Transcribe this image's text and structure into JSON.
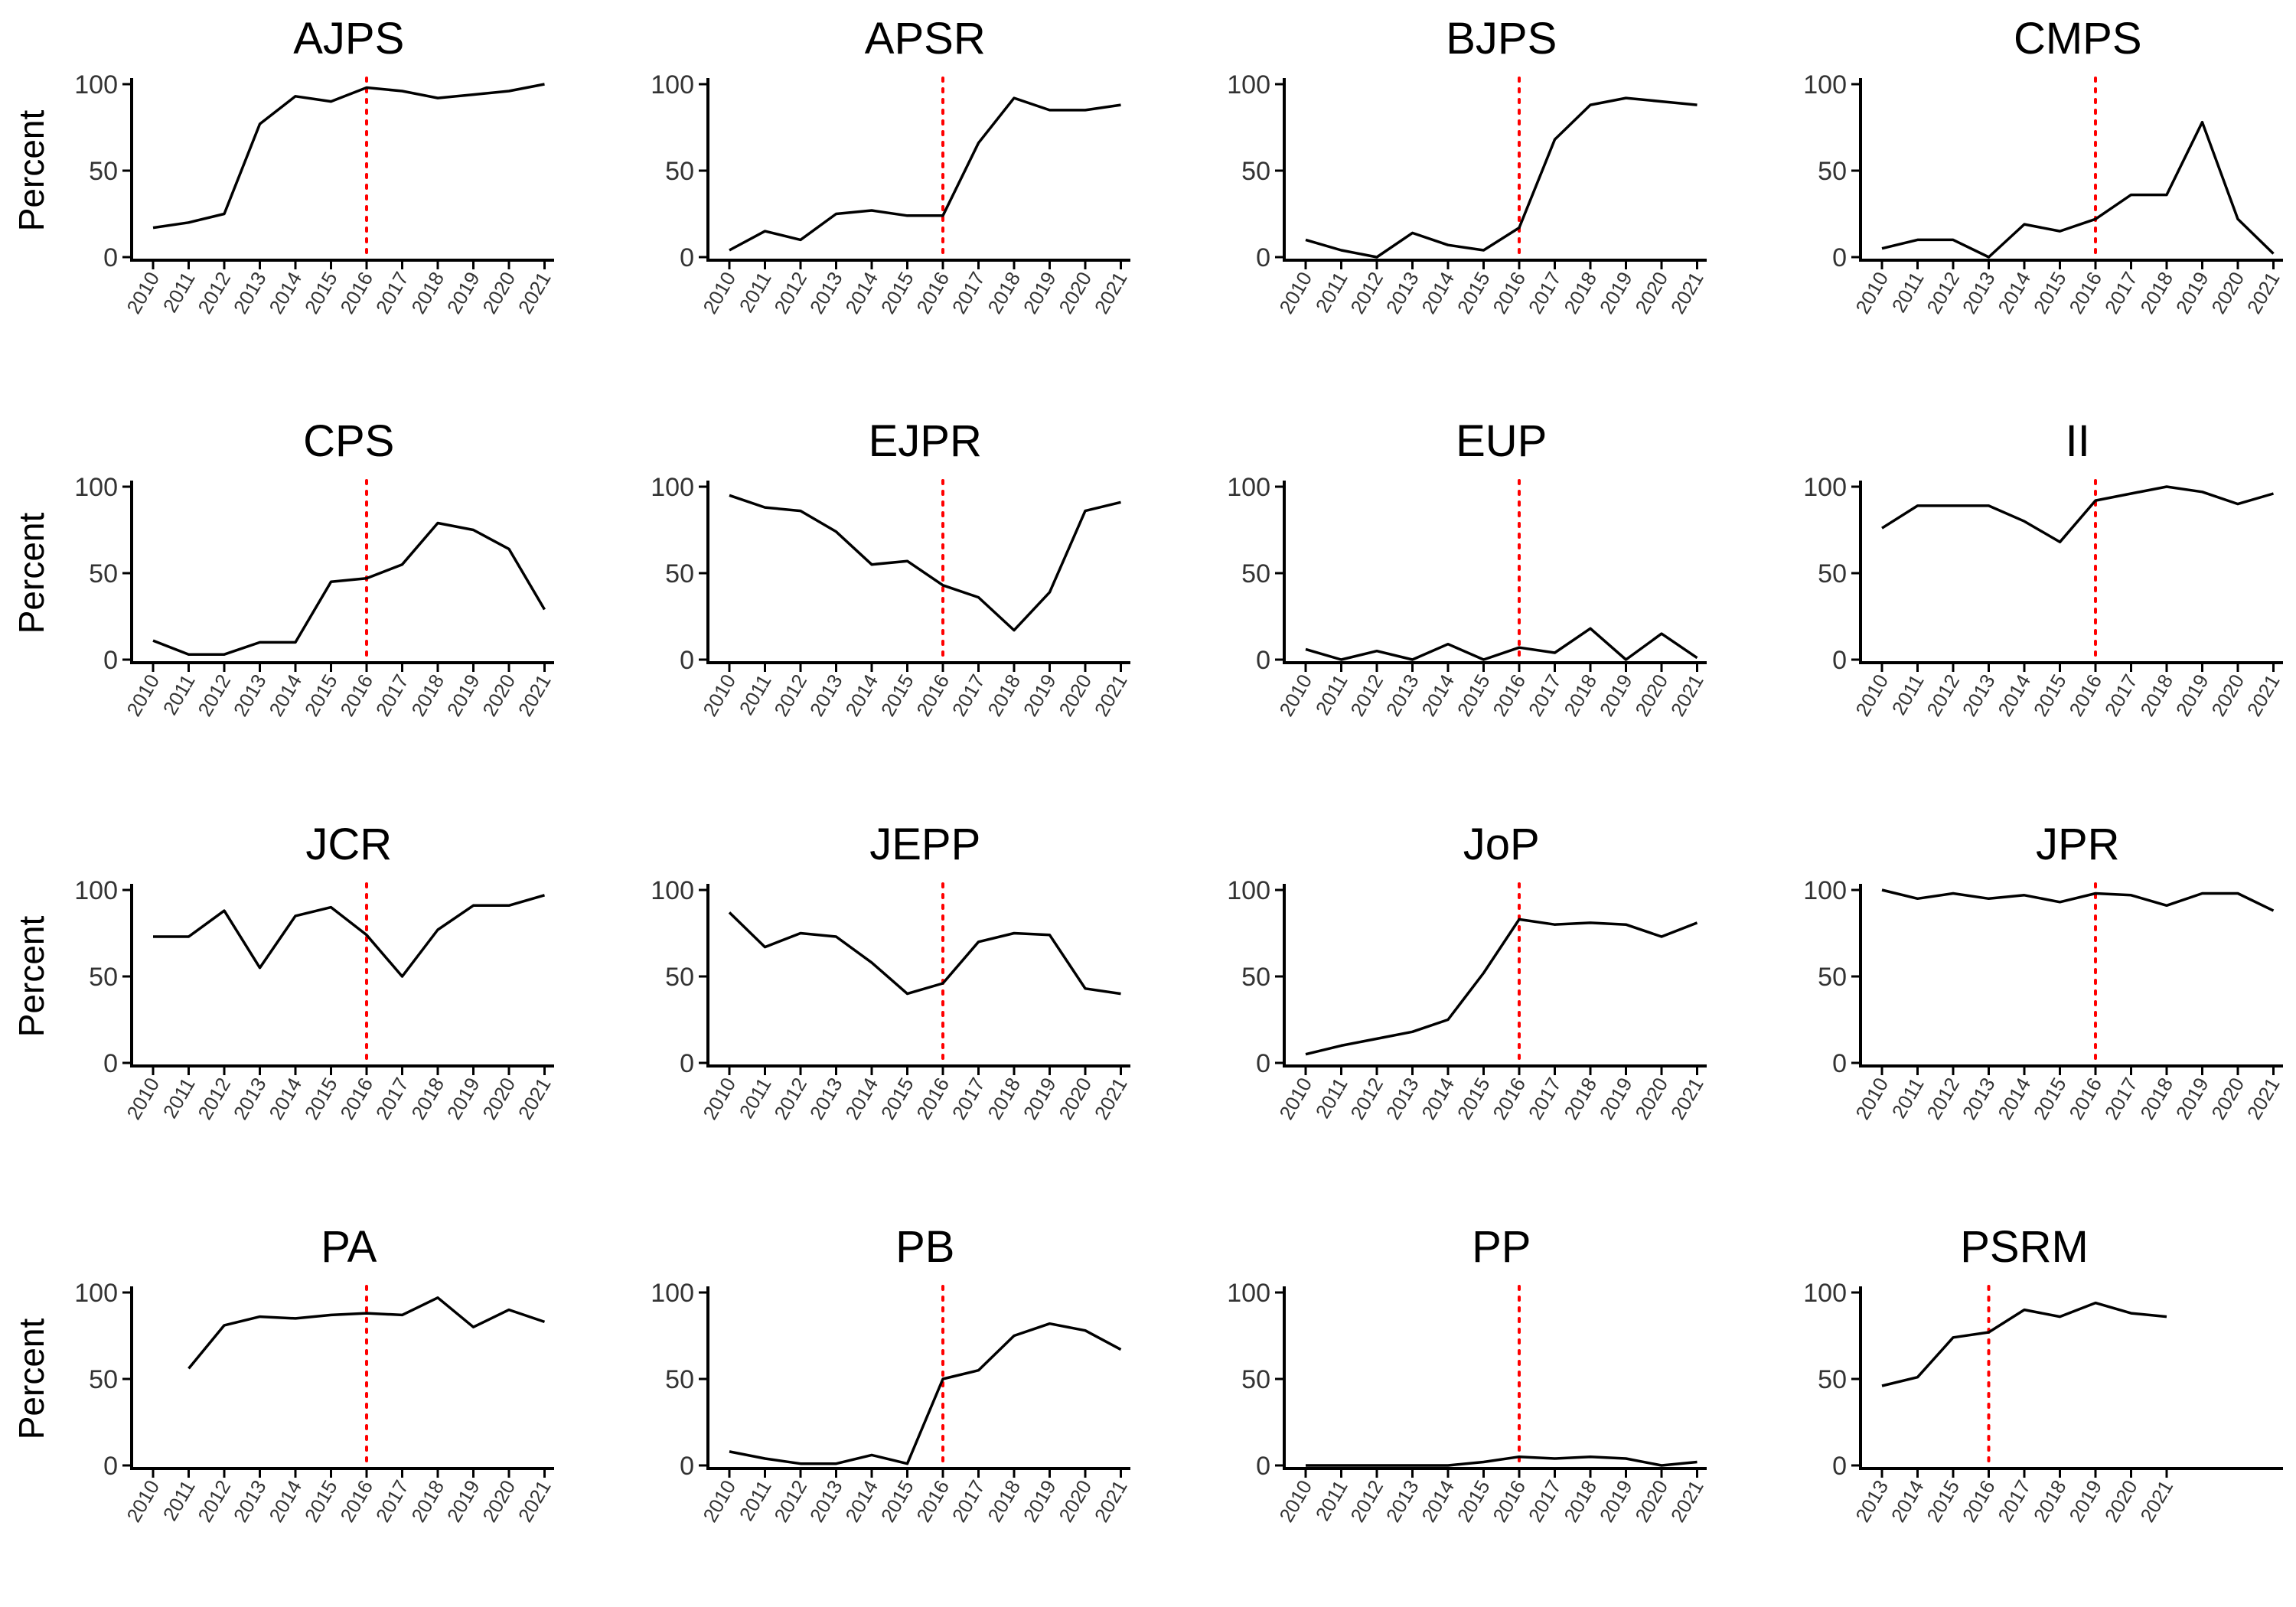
{
  "chart_data": [
    {
      "type": "line",
      "title": "AJPS",
      "ylabel": "Percent",
      "ylim": [
        0,
        100
      ],
      "yticks": [
        0,
        50,
        100
      ],
      "ref_x": 2016,
      "ref_color": "#ff0000",
      "x": [
        2010,
        2011,
        2012,
        2013,
        2014,
        2015,
        2016,
        2017,
        2018,
        2019,
        2020,
        2021
      ],
      "y": [
        17,
        20,
        25,
        77,
        93,
        90,
        98,
        96,
        92,
        94,
        96,
        100
      ]
    },
    {
      "type": "line",
      "title": "APSR",
      "ylabel": "",
      "ylim": [
        0,
        100
      ],
      "yticks": [
        0,
        50,
        100
      ],
      "ref_x": 2016,
      "ref_color": "#ff0000",
      "x": [
        2010,
        2011,
        2012,
        2013,
        2014,
        2015,
        2016,
        2017,
        2018,
        2019,
        2020,
        2021
      ],
      "y": [
        4,
        15,
        10,
        25,
        27,
        24,
        24,
        66,
        92,
        85,
        85,
        88
      ]
    },
    {
      "type": "line",
      "title": "BJPS",
      "ylabel": "",
      "ylim": [
        0,
        100
      ],
      "yticks": [
        0,
        50,
        100
      ],
      "ref_x": 2016,
      "ref_color": "#ff0000",
      "x": [
        2010,
        2011,
        2012,
        2013,
        2014,
        2015,
        2016,
        2017,
        2018,
        2019,
        2020,
        2021
      ],
      "y": [
        10,
        4,
        0,
        14,
        7,
        4,
        17,
        68,
        88,
        92,
        90,
        88
      ]
    },
    {
      "type": "line",
      "title": "CMPS",
      "ylabel": "",
      "ylim": [
        0,
        100
      ],
      "yticks": [
        0,
        50,
        100
      ],
      "ref_x": 2016,
      "ref_color": "#ff0000",
      "x": [
        2010,
        2011,
        2012,
        2013,
        2014,
        2015,
        2016,
        2017,
        2018,
        2019,
        2020,
        2021
      ],
      "y": [
        5,
        10,
        10,
        0,
        19,
        15,
        22,
        36,
        36,
        78,
        22,
        2
      ]
    },
    {
      "type": "line",
      "title": "CPS",
      "ylabel": "Percent",
      "ylim": [
        0,
        100
      ],
      "yticks": [
        0,
        50,
        100
      ],
      "ref_x": 2016,
      "ref_color": "#ff0000",
      "x": [
        2010,
        2011,
        2012,
        2013,
        2014,
        2015,
        2016,
        2017,
        2018,
        2019,
        2020,
        2021
      ],
      "y": [
        11,
        3,
        3,
        10,
        10,
        45,
        47,
        55,
        79,
        75,
        64,
        29
      ]
    },
    {
      "type": "line",
      "title": "EJPR",
      "ylabel": "",
      "ylim": [
        0,
        100
      ],
      "yticks": [
        0,
        50,
        100
      ],
      "ref_x": 2016,
      "ref_color": "#ff0000",
      "x": [
        2010,
        2011,
        2012,
        2013,
        2014,
        2015,
        2016,
        2017,
        2018,
        2019,
        2020,
        2021
      ],
      "y": [
        95,
        88,
        86,
        74,
        55,
        57,
        43,
        36,
        17,
        39,
        86,
        91
      ]
    },
    {
      "type": "line",
      "title": "EUP",
      "ylabel": "",
      "ylim": [
        0,
        100
      ],
      "yticks": [
        0,
        50,
        100
      ],
      "ref_x": 2016,
      "ref_color": "#ff0000",
      "x": [
        2010,
        2011,
        2012,
        2013,
        2014,
        2015,
        2016,
        2017,
        2018,
        2019,
        2020,
        2021
      ],
      "y": [
        6,
        0,
        5,
        0,
        9,
        0,
        7,
        4,
        18,
        0,
        15,
        1
      ]
    },
    {
      "type": "line",
      "title": "II",
      "ylabel": "",
      "ylim": [
        0,
        100
      ],
      "yticks": [
        0,
        50,
        100
      ],
      "ref_x": 2016,
      "ref_color": "#ff0000",
      "x": [
        2010,
        2011,
        2012,
        2013,
        2014,
        2015,
        2016,
        2017,
        2018,
        2019,
        2020,
        2021
      ],
      "y": [
        76,
        89,
        89,
        89,
        80,
        68,
        92,
        96,
        100,
        97,
        90,
        96
      ]
    },
    {
      "type": "line",
      "title": "JCR",
      "ylabel": "Percent",
      "ylim": [
        0,
        100
      ],
      "yticks": [
        0,
        50,
        100
      ],
      "ref_x": 2016,
      "ref_color": "#ff0000",
      "x": [
        2010,
        2011,
        2012,
        2013,
        2014,
        2015,
        2016,
        2017,
        2018,
        2019,
        2020,
        2021
      ],
      "y": [
        73,
        73,
        88,
        55,
        85,
        90,
        74,
        50,
        77,
        91,
        91,
        97
      ]
    },
    {
      "type": "line",
      "title": "JEPP",
      "ylabel": "",
      "ylim": [
        0,
        100
      ],
      "yticks": [
        0,
        50,
        100
      ],
      "ref_x": 2016,
      "ref_color": "#ff0000",
      "x": [
        2010,
        2011,
        2012,
        2013,
        2014,
        2015,
        2016,
        2017,
        2018,
        2019,
        2020,
        2021
      ],
      "y": [
        87,
        67,
        75,
        73,
        58,
        40,
        46,
        70,
        75,
        74,
        43,
        40
      ]
    },
    {
      "type": "line",
      "title": "JoP",
      "ylabel": "",
      "ylim": [
        0,
        100
      ],
      "yticks": [
        0,
        50,
        100
      ],
      "ref_x": 2016,
      "ref_color": "#ff0000",
      "x": [
        2010,
        2011,
        2012,
        2013,
        2014,
        2015,
        2016,
        2017,
        2018,
        2019,
        2020,
        2021
      ],
      "y": [
        5,
        10,
        14,
        18,
        25,
        52,
        83,
        80,
        81,
        80,
        73,
        81
      ]
    },
    {
      "type": "line",
      "title": "JPR",
      "ylabel": "",
      "ylim": [
        0,
        100
      ],
      "yticks": [
        0,
        50,
        100
      ],
      "ref_x": 2016,
      "ref_color": "#ff0000",
      "x": [
        2010,
        2011,
        2012,
        2013,
        2014,
        2015,
        2016,
        2017,
        2018,
        2019,
        2020,
        2021
      ],
      "y": [
        100,
        95,
        98,
        95,
        97,
        93,
        98,
        97,
        91,
        98,
        98,
        88
      ]
    },
    {
      "type": "line",
      "title": "PA",
      "ylabel": "Percent",
      "ylim": [
        0,
        100
      ],
      "yticks": [
        0,
        50,
        100
      ],
      "ref_x": 2016,
      "ref_color": "#ff0000",
      "x": [
        2010,
        2011,
        2012,
        2013,
        2014,
        2015,
        2016,
        2017,
        2018,
        2019,
        2020,
        2021
      ],
      "y": [
        null,
        56,
        81,
        86,
        85,
        87,
        88,
        87,
        97,
        80,
        90,
        83
      ]
    },
    {
      "type": "line",
      "title": "PB",
      "ylabel": "",
      "ylim": [
        0,
        100
      ],
      "yticks": [
        0,
        50,
        100
      ],
      "ref_x": 2016,
      "ref_color": "#ff0000",
      "x": [
        2010,
        2011,
        2012,
        2013,
        2014,
        2015,
        2016,
        2017,
        2018,
        2019,
        2020,
        2021
      ],
      "y": [
        8,
        4,
        1,
        1,
        6,
        1,
        50,
        55,
        75,
        82,
        78,
        67
      ]
    },
    {
      "type": "line",
      "title": "PP",
      "ylabel": "",
      "ylim": [
        0,
        100
      ],
      "yticks": [
        0,
        50,
        100
      ],
      "ref_x": 2016,
      "ref_color": "#ff0000",
      "x": [
        2010,
        2011,
        2012,
        2013,
        2014,
        2015,
        2016,
        2017,
        2018,
        2019,
        2020,
        2021
      ],
      "y": [
        0,
        0,
        0,
        0,
        0,
        2,
        5,
        4,
        5,
        4,
        0,
        2
      ]
    },
    {
      "type": "line",
      "title": "PSRM",
      "ylabel": "",
      "ylim": [
        0,
        100
      ],
      "yticks": [
        0,
        50,
        100
      ],
      "ref_x": 2016,
      "ref_color": "#ff0000",
      "x": [
        2013,
        2014,
        2015,
        2016,
        2017,
        2018,
        2019,
        2020,
        2021
      ],
      "y": [
        46,
        51,
        74,
        77,
        90,
        86,
        94,
        88,
        86
      ]
    }
  ]
}
